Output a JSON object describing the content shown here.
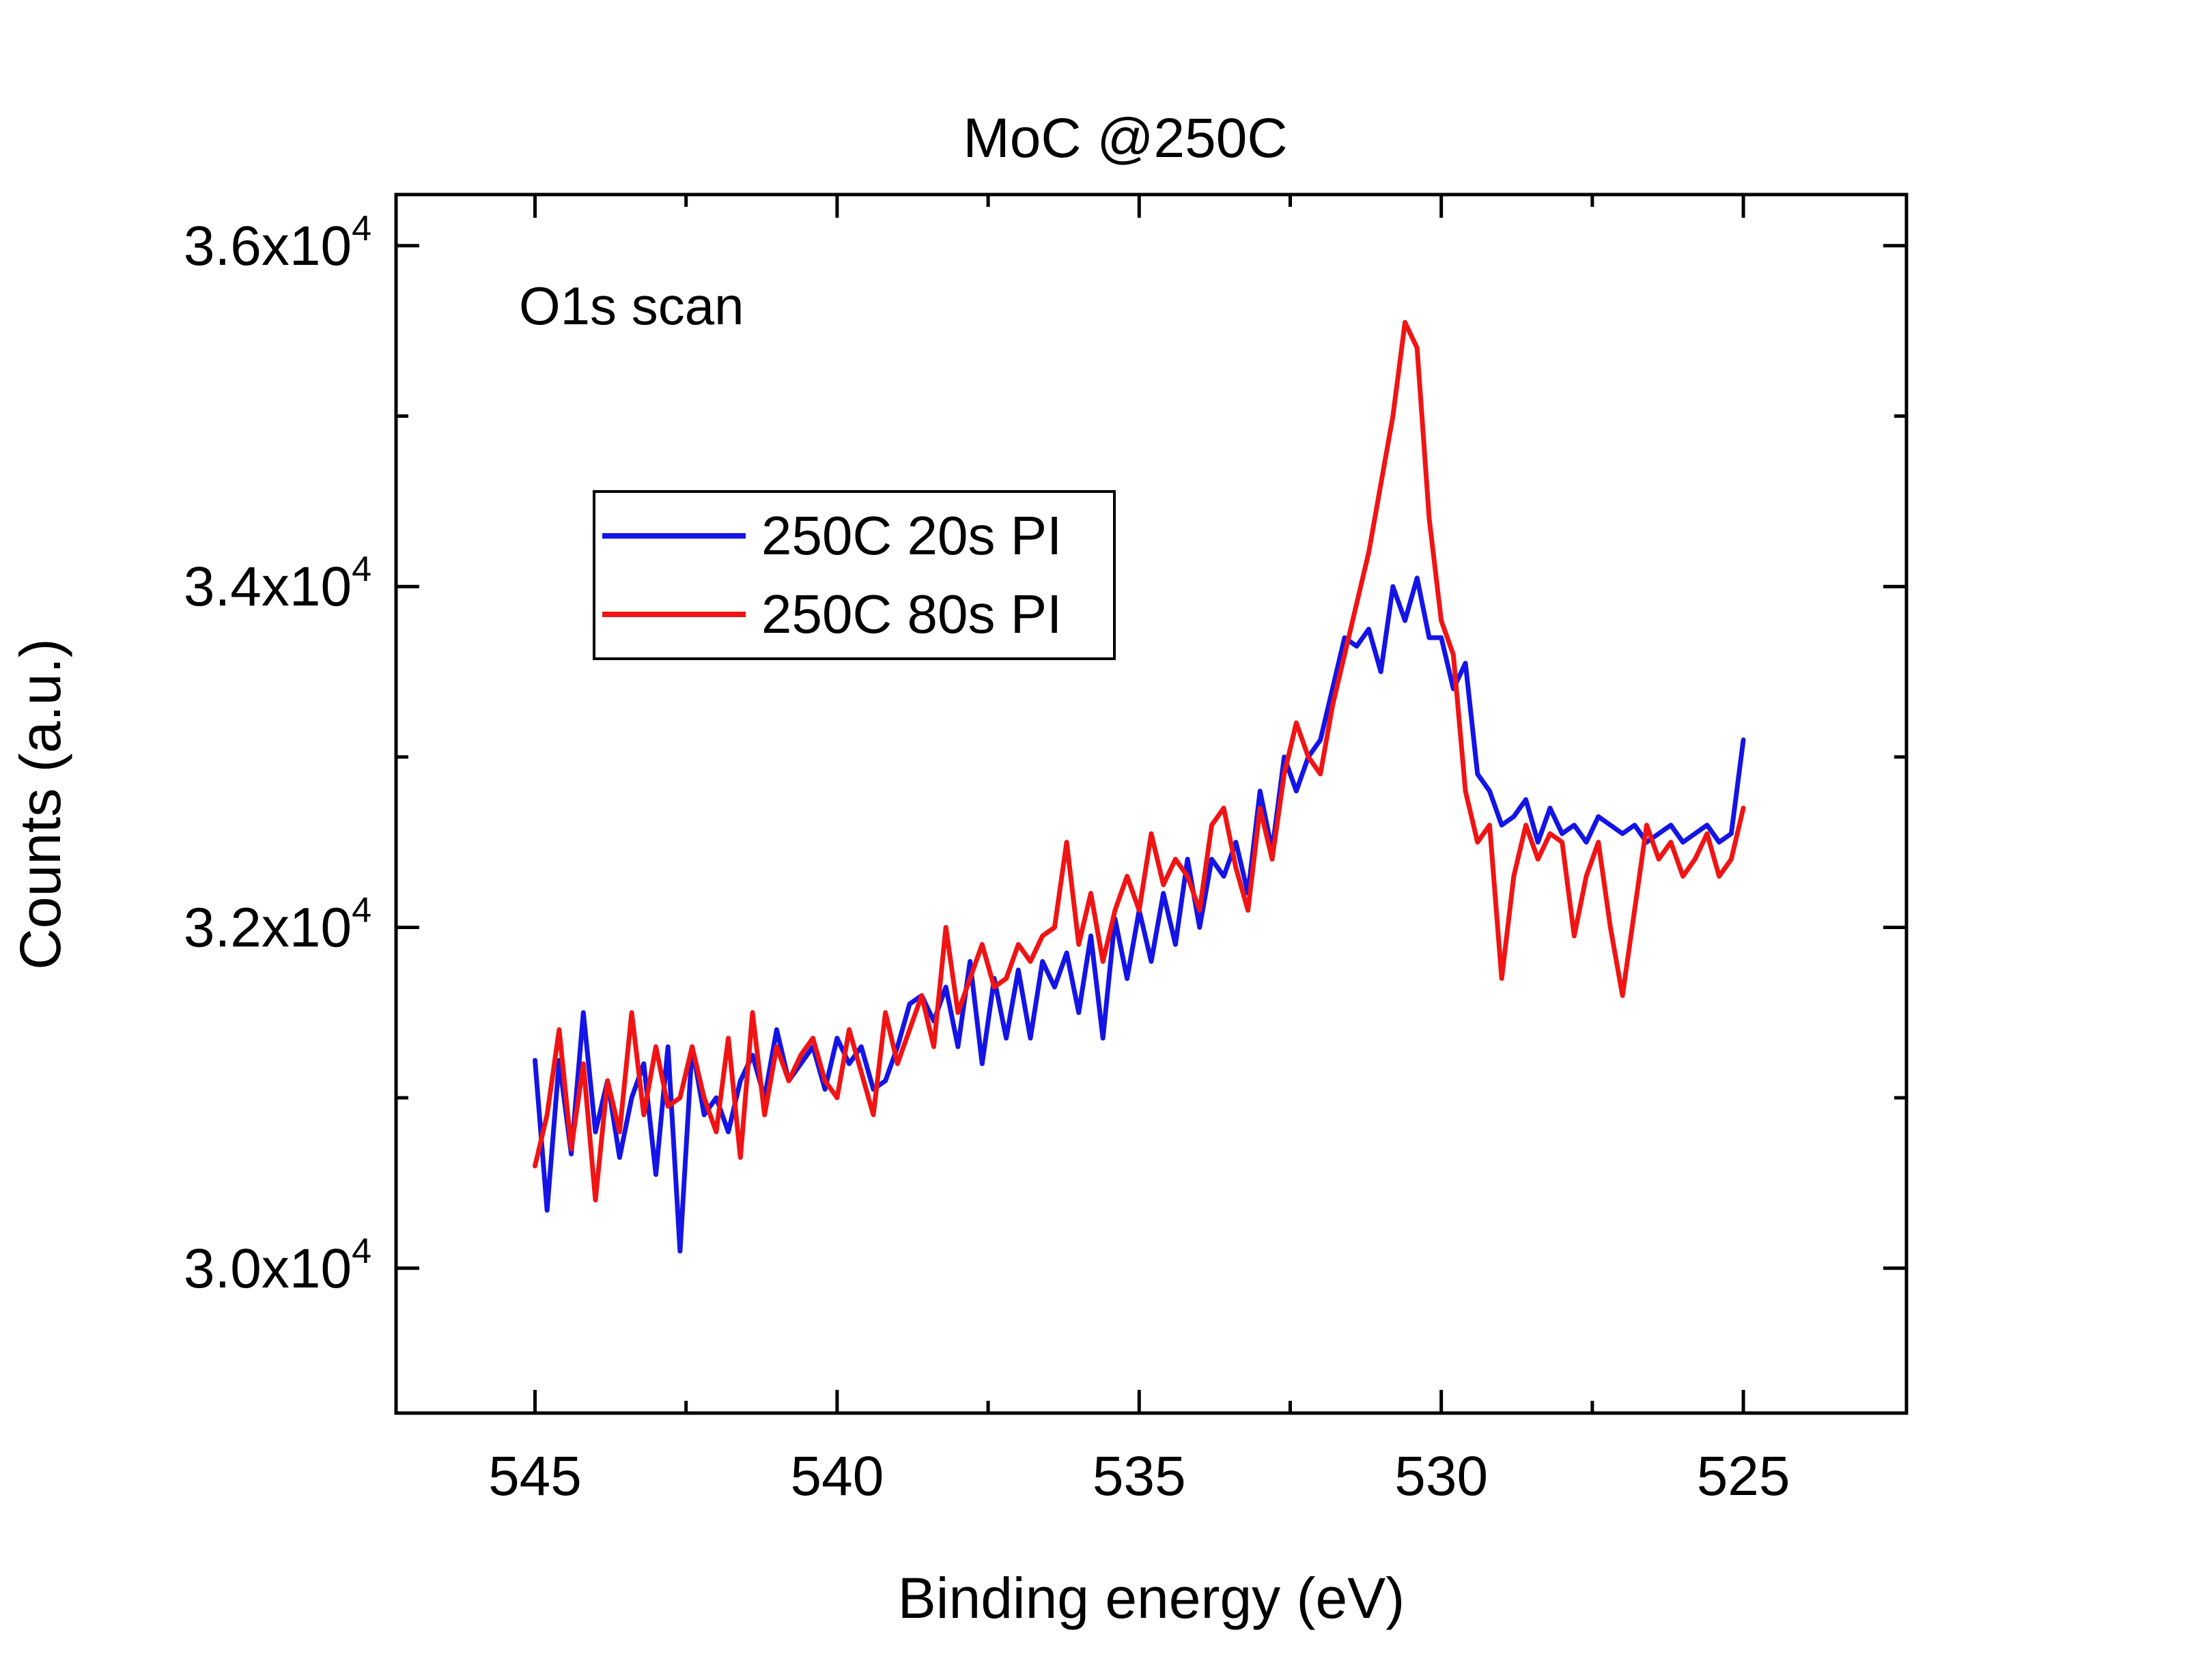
{
  "chart_data": {
    "type": "line",
    "title": "MoC @250C",
    "xlabel": "Binding energy (eV)",
    "ylabel": "Counts (a.u.)",
    "annotation": "O1s scan",
    "x_reversed": true,
    "xlim": [
      547.3,
      522.3
    ],
    "ylim": [
      29150,
      36300
    ],
    "x_ticks": [
      545,
      540,
      535,
      530,
      525
    ],
    "x_tick_labels": [
      "545",
      "540",
      "535",
      "530",
      "525"
    ],
    "x_minor_ticks": [
      542.5,
      537.5,
      532.5,
      527.5
    ],
    "y_ticks": [
      30000,
      32000,
      34000,
      36000
    ],
    "y_tick_labels": [
      {
        "mantissa": "3.0x10",
        "exponent": "4"
      },
      {
        "mantissa": "3.2x10",
        "exponent": "4"
      },
      {
        "mantissa": "3.4x10",
        "exponent": "4"
      },
      {
        "mantissa": "3.6x10",
        "exponent": "4"
      }
    ],
    "y_minor_ticks": [
      31000,
      33000,
      35000
    ],
    "legend_position": "upper-left",
    "series": [
      {
        "name": "250C 20s PI",
        "color": "#1414e6",
        "x": [
          545.0,
          544.8,
          544.6,
          544.4,
          544.2,
          544.0,
          543.8,
          543.6,
          543.4,
          543.2,
          543.0,
          542.8,
          542.6,
          542.4,
          542.2,
          542.0,
          541.8,
          541.6,
          541.4,
          541.2,
          541.0,
          540.8,
          540.6,
          540.4,
          540.2,
          540.0,
          539.8,
          539.6,
          539.4,
          539.2,
          539.0,
          538.8,
          538.6,
          538.4,
          538.2,
          538.0,
          537.8,
          537.6,
          537.4,
          537.2,
          537.0,
          536.8,
          536.6,
          536.4,
          536.2,
          536.0,
          535.8,
          535.6,
          535.4,
          535.2,
          535.0,
          534.8,
          534.6,
          534.4,
          534.2,
          534.0,
          533.8,
          533.6,
          533.4,
          533.2,
          533.0,
          532.8,
          532.6,
          532.4,
          532.2,
          532.0,
          531.8,
          531.6,
          531.4,
          531.2,
          531.0,
          530.8,
          530.6,
          530.4,
          530.2,
          530.0,
          529.8,
          529.6,
          529.4,
          529.2,
          529.0,
          528.8,
          528.6,
          528.4,
          528.2,
          528.0,
          527.8,
          527.6,
          527.4,
          527.2,
          527.0,
          526.8,
          526.6,
          526.4,
          526.2,
          526.0,
          525.8,
          525.6,
          525.4,
          525.2,
          525.0
        ],
        "y": [
          31220,
          30340,
          31220,
          30670,
          31500,
          30800,
          31100,
          30650,
          31000,
          31200,
          30550,
          31300,
          30100,
          31300,
          30900,
          31000,
          30800,
          31100,
          31250,
          31000,
          31400,
          31100,
          31200,
          31300,
          31050,
          31350,
          31200,
          31300,
          31050,
          31100,
          31300,
          31550,
          31600,
          31450,
          31650,
          31300,
          31800,
          31200,
          31700,
          31350,
          31750,
          31350,
          31800,
          31650,
          31850,
          31500,
          31950,
          31350,
          32050,
          31700,
          32100,
          31800,
          32200,
          31900,
          32400,
          32000,
          32400,
          32300,
          32500,
          32200,
          32800,
          32450,
          33000,
          32800,
          33000,
          33100,
          33400,
          33700,
          33650,
          33750,
          33500,
          34000,
          33800,
          34050,
          33700,
          33700,
          33400,
          33550,
          32900,
          32800,
          32600,
          32650,
          32750,
          32500,
          32700,
          32550,
          32600,
          32500,
          32650,
          32600,
          32550,
          32600,
          32500,
          32550,
          32600,
          32500,
          32550,
          32600,
          32500,
          32550,
          33100
        ]
      },
      {
        "name": "250C 80s PI",
        "color": "#f01414",
        "x": [
          545.0,
          544.8,
          544.6,
          544.4,
          544.2,
          544.0,
          543.8,
          543.6,
          543.4,
          543.2,
          543.0,
          542.8,
          542.6,
          542.4,
          542.2,
          542.0,
          541.8,
          541.6,
          541.4,
          541.2,
          541.0,
          540.8,
          540.6,
          540.4,
          540.2,
          540.0,
          539.8,
          539.6,
          539.4,
          539.2,
          539.0,
          538.8,
          538.6,
          538.4,
          538.2,
          538.0,
          537.8,
          537.6,
          537.4,
          537.2,
          537.0,
          536.8,
          536.6,
          536.4,
          536.2,
          536.0,
          535.8,
          535.6,
          535.4,
          535.2,
          535.0,
          534.8,
          534.6,
          534.4,
          534.2,
          534.0,
          533.8,
          533.6,
          533.4,
          533.2,
          533.0,
          532.8,
          532.6,
          532.4,
          532.2,
          532.0,
          531.8,
          531.6,
          531.4,
          531.2,
          531.0,
          530.8,
          530.6,
          530.4,
          530.2,
          530.0,
          529.8,
          529.6,
          529.4,
          529.2,
          529.0,
          528.8,
          528.6,
          528.4,
          528.2,
          528.0,
          527.8,
          527.6,
          527.4,
          527.2,
          527.0,
          526.8,
          526.6,
          526.4,
          526.2,
          526.0,
          525.8,
          525.6,
          525.4,
          525.2,
          525.0
        ],
        "y": [
          30600,
          30900,
          31400,
          30700,
          31200,
          30400,
          31100,
          30800,
          31500,
          30900,
          31300,
          30950,
          31000,
          31300,
          31000,
          30800,
          31350,
          30650,
          31500,
          30900,
          31300,
          31100,
          31250,
          31350,
          31100,
          31000,
          31400,
          31150,
          30900,
          31500,
          31200,
          31400,
          31600,
          31300,
          32000,
          31500,
          31700,
          31900,
          31650,
          31700,
          31900,
          31800,
          31950,
          32000,
          32500,
          31900,
          32200,
          31800,
          32100,
          32300,
          32100,
          32550,
          32250,
          32400,
          32300,
          32100,
          32600,
          32700,
          32350,
          32100,
          32700,
          32400,
          32900,
          33200,
          33000,
          32900,
          33300,
          33600,
          33900,
          34200,
          34600,
          35000,
          35550,
          35400,
          34400,
          33800,
          33600,
          32800,
          32500,
          32600,
          31700,
          32300,
          32600,
          32400,
          32550,
          32500,
          31950,
          32300,
          32500,
          32000,
          31600,
          32100,
          32600,
          32400,
          32500,
          32300,
          32400,
          32550,
          32300,
          32400,
          32700
        ]
      }
    ]
  }
}
